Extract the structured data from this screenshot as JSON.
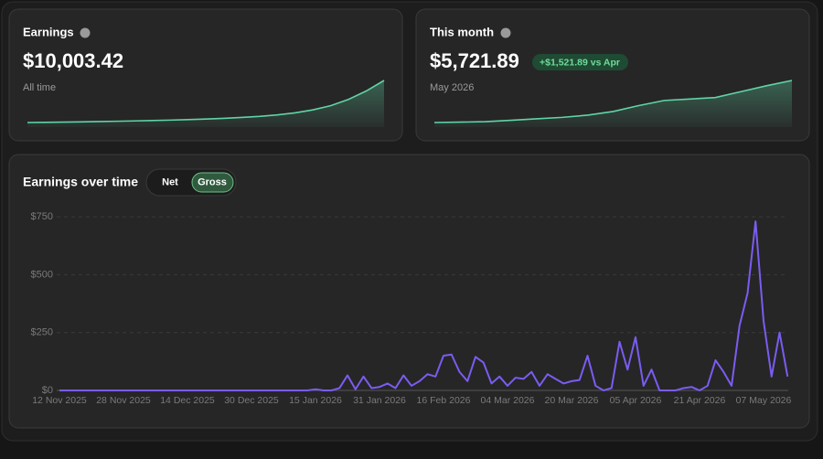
{
  "cards": [
    {
      "title": "Earnings",
      "value": "$10,003.42",
      "caption": "All time",
      "sparkline": [
        0,
        50,
        100,
        160,
        230,
        300,
        380,
        470,
        570,
        690,
        830,
        1000,
        1200,
        1450,
        1800,
        2300,
        3000,
        4000,
        5500,
        7500,
        10003.42
      ]
    },
    {
      "title": "This month",
      "value": "$5,721.89",
      "badge": "+$1,521.89 vs Apr",
      "caption": "May 2026",
      "sparkline": [
        0,
        50,
        120,
        300,
        500,
        700,
        1000,
        1500,
        2300,
        3000,
        3200,
        3400,
        4200,
        5000,
        5721.89
      ]
    }
  ],
  "chart_data": {
    "type": "line",
    "title": "Earnings over time",
    "toggle": [
      "Net",
      "Gross"
    ],
    "active_toggle": 1,
    "categories": [
      "12 Nov 2025",
      null,
      null,
      null,
      null,
      null,
      null,
      null,
      "28 Nov 2025",
      null,
      null,
      null,
      null,
      null,
      null,
      null,
      "14 Dec 2025",
      null,
      null,
      null,
      null,
      null,
      null,
      null,
      "30 Dec 2025",
      null,
      null,
      null,
      null,
      null,
      null,
      null,
      "15 Jan 2026",
      null,
      null,
      null,
      null,
      null,
      null,
      null,
      "31 Jan 2026",
      null,
      null,
      null,
      null,
      null,
      null,
      null,
      "16 Feb 2026",
      null,
      null,
      null,
      null,
      null,
      null,
      null,
      "04 Mar 2026",
      null,
      null,
      null,
      null,
      null,
      null,
      null,
      "20 Mar 2026",
      null,
      null,
      null,
      null,
      null,
      null,
      null,
      "05 Apr 2026",
      null,
      null,
      null,
      null,
      null,
      null,
      null,
      "21 Apr 2026",
      null,
      null,
      null,
      null,
      null,
      null,
      null,
      "07 May 2026",
      null,
      null,
      null
    ],
    "series": [
      {
        "name": "Gross",
        "color": "#7b5cf0",
        "values": [
          0,
          0,
          0,
          0,
          0,
          0,
          0,
          0,
          0,
          0,
          0,
          0,
          0,
          0,
          0,
          0,
          0,
          0,
          0,
          0,
          0,
          0,
          0,
          0,
          0,
          0,
          0,
          0,
          0,
          0,
          0,
          0,
          5,
          0,
          0,
          10,
          65,
          5,
          60,
          10,
          15,
          30,
          10,
          65,
          20,
          40,
          70,
          60,
          150,
          155,
          80,
          40,
          145,
          120,
          30,
          60,
          20,
          55,
          50,
          80,
          20,
          70,
          50,
          30,
          40,
          45,
          150,
          20,
          0,
          10,
          210,
          90,
          230,
          20,
          90,
          0,
          0,
          0,
          10,
          15,
          0,
          20,
          130,
          80,
          20,
          280,
          420,
          730,
          300,
          60,
          250,
          60
        ]
      }
    ],
    "ylim": [
      0,
      770
    ],
    "yticks": [
      {
        "value": 0,
        "label": "$0"
      },
      {
        "value": 250,
        "label": "$250"
      },
      {
        "value": 500,
        "label": "$500"
      },
      {
        "value": 750,
        "label": "$750"
      }
    ],
    "grid": true
  }
}
